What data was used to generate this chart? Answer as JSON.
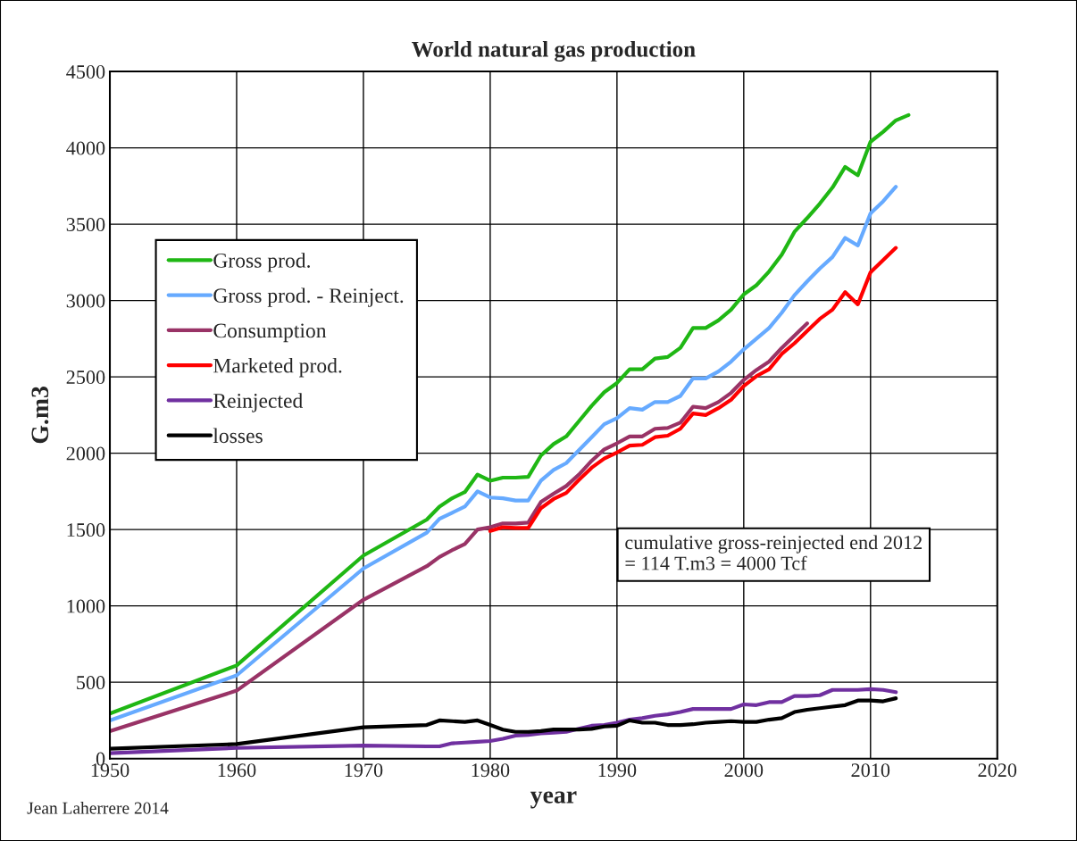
{
  "chart_data": {
    "type": "line",
    "title": "World natural gas production",
    "xlabel": "year",
    "ylabel": "G.m3",
    "xlim": [
      1950,
      2020
    ],
    "xticks": [
      1950,
      1960,
      1970,
      1980,
      1990,
      2000,
      2010,
      2020
    ],
    "ylim": [
      0,
      4500
    ],
    "yticks": [
      0,
      500,
      1000,
      1500,
      2000,
      2500,
      3000,
      3500,
      4000,
      4500
    ],
    "grid": true,
    "legend": "top left",
    "line_style": "solid",
    "annotations": [
      "cumulative gross-reinjected end 2012\n= 114 T.m3 = 4000 Tcf",
      "Jean Laherrere 2014"
    ],
    "series": [
      {
        "name": "Gross prod.",
        "color": "#1fb714",
        "x": [
          1950,
          1960,
          1970,
          1975,
          1976,
          1977,
          1978,
          1979,
          1980,
          1981,
          1982,
          1983,
          1984,
          1985,
          1986,
          1987,
          1988,
          1989,
          1990,
          1991,
          1992,
          1993,
          1994,
          1995,
          1996,
          1997,
          1998,
          1999,
          2000,
          2001,
          2002,
          2003,
          2004,
          2005,
          2006,
          2007,
          2008,
          2009,
          2010,
          2011,
          2012,
          2013
        ],
        "values": [
          295,
          610,
          1330,
          1565,
          1650,
          1705,
          1745,
          1860,
          1820,
          1840,
          1840,
          1845,
          1985,
          2060,
          2110,
          2210,
          2310,
          2400,
          2460,
          2550,
          2550,
          2620,
          2630,
          2690,
          2820,
          2820,
          2870,
          2940,
          3040,
          3100,
          3190,
          3300,
          3450,
          3540,
          3635,
          3740,
          3875,
          3820,
          4040,
          4105,
          4180,
          4215
        ]
      },
      {
        "name": "Gross prod. - Reinject.",
        "color": "#66aaff",
        "x": [
          1950,
          1960,
          1970,
          1975,
          1976,
          1977,
          1978,
          1979,
          1980,
          1981,
          1982,
          1983,
          1984,
          1985,
          1986,
          1987,
          1988,
          1989,
          1990,
          1991,
          1992,
          1993,
          1994,
          1995,
          1996,
          1997,
          1998,
          1999,
          2000,
          2001,
          2002,
          2003,
          2004,
          2005,
          2006,
          2007,
          2008,
          2009,
          2010,
          2011,
          2012
        ],
        "values": [
          250,
          545,
          1245,
          1480,
          1570,
          1610,
          1650,
          1750,
          1710,
          1705,
          1690,
          1690,
          1820,
          1890,
          1935,
          2020,
          2105,
          2190,
          2230,
          2295,
          2285,
          2335,
          2335,
          2375,
          2490,
          2490,
          2535,
          2600,
          2680,
          2750,
          2820,
          2920,
          3035,
          3125,
          3210,
          3285,
          3410,
          3360,
          3570,
          3650,
          3745
        ]
      },
      {
        "name": "Consumption",
        "color": "#993366",
        "x": [
          1950,
          1960,
          1970,
          1975,
          1976,
          1977,
          1978,
          1979,
          1980,
          1981,
          1982,
          1983,
          1984,
          1985,
          1986,
          1987,
          1988,
          1989,
          1990,
          1991,
          1992,
          1993,
          1994,
          1995,
          1996,
          1997,
          1998,
          1999,
          2000,
          2001,
          2002,
          2003,
          2004,
          2005
        ],
        "values": [
          180,
          445,
          1040,
          1260,
          1320,
          1365,
          1405,
          1500,
          1515,
          1540,
          1540,
          1545,
          1680,
          1735,
          1785,
          1860,
          1950,
          2025,
          2065,
          2110,
          2110,
          2160,
          2165,
          2200,
          2305,
          2295,
          2335,
          2395,
          2480,
          2545,
          2600,
          2690,
          2770,
          2850
        ]
      },
      {
        "name": "Marketed prod.",
        "color": "#ff0000",
        "x": [
          1980,
          1981,
          1982,
          1983,
          1984,
          1985,
          1986,
          1987,
          1988,
          1989,
          1990,
          1991,
          1992,
          1993,
          1994,
          1995,
          1996,
          1997,
          1998,
          1999,
          2000,
          2001,
          2002,
          2003,
          2004,
          2005,
          2006,
          2007,
          2008,
          2009,
          2010,
          2011,
          2012
        ],
        "values": [
          1490,
          1515,
          1510,
          1510,
          1640,
          1700,
          1740,
          1825,
          1905,
          1965,
          2005,
          2050,
          2055,
          2105,
          2115,
          2160,
          2260,
          2250,
          2295,
          2350,
          2440,
          2505,
          2550,
          2650,
          2720,
          2800,
          2880,
          2940,
          3055,
          2975,
          3185,
          3265,
          3345
        ]
      },
      {
        "name": "Reinjected",
        "color": "#7030a0",
        "x": [
          1950,
          1960,
          1970,
          1975,
          1976,
          1977,
          1978,
          1979,
          1980,
          1981,
          1982,
          1983,
          1984,
          1985,
          1986,
          1987,
          1988,
          1989,
          1990,
          1991,
          1992,
          1993,
          1994,
          1995,
          1996,
          1997,
          1998,
          1999,
          2000,
          2001,
          2002,
          2003,
          2004,
          2005,
          2006,
          2007,
          2008,
          2009,
          2010,
          2011,
          2012
        ],
        "values": [
          35,
          70,
          85,
          80,
          80,
          100,
          105,
          110,
          115,
          130,
          150,
          155,
          165,
          170,
          175,
          195,
          215,
          220,
          235,
          255,
          265,
          280,
          290,
          305,
          325,
          325,
          325,
          325,
          355,
          350,
          370,
          370,
          410,
          410,
          415,
          450,
          450,
          450,
          455,
          450,
          435
        ]
      },
      {
        "name": "losses",
        "color": "#000000",
        "x": [
          1950,
          1960,
          1970,
          1975,
          1976,
          1977,
          1978,
          1979,
          1980,
          1981,
          1982,
          1983,
          1984,
          1985,
          1986,
          1987,
          1988,
          1989,
          1990,
          1991,
          1992,
          1993,
          1994,
          1995,
          1996,
          1997,
          1998,
          1999,
          2000,
          2001,
          2002,
          2003,
          2004,
          2005,
          2006,
          2007,
          2008,
          2009,
          2010,
          2011,
          2012
        ],
        "values": [
          65,
          95,
          205,
          220,
          250,
          245,
          240,
          250,
          220,
          190,
          175,
          175,
          180,
          190,
          190,
          190,
          195,
          210,
          215,
          250,
          235,
          235,
          220,
          220,
          225,
          235,
          240,
          245,
          240,
          240,
          255,
          265,
          305,
          320,
          330,
          340,
          350,
          380,
          380,
          375,
          395
        ]
      }
    ]
  }
}
